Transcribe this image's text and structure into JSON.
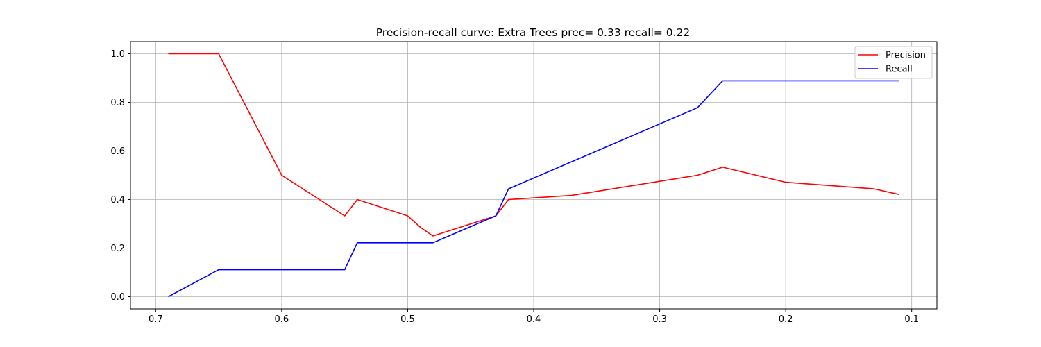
{
  "chart_data": {
    "type": "line",
    "title": "Precision-recall curve: Extra Trees prec= 0.33 recall= 0.22",
    "xlabel": "",
    "ylabel": "",
    "x_reversed": true,
    "xlim": [
      0.72,
      0.08
    ],
    "ylim": [
      -0.05,
      1.05
    ],
    "xticks": [
      0.7,
      0.6,
      0.5,
      0.4,
      0.3,
      0.2,
      0.1
    ],
    "xtick_labels": [
      "0.7",
      "0.6",
      "0.5",
      "0.4",
      "0.3",
      "0.2",
      "0.1"
    ],
    "yticks": [
      0.0,
      0.2,
      0.4,
      0.6,
      0.8,
      1.0
    ],
    "ytick_labels": [
      "0.0",
      "0.2",
      "0.4",
      "0.6",
      "0.8",
      "1.0"
    ],
    "grid": true,
    "legend_position": "top-right",
    "series": [
      {
        "name": "Precision",
        "color": "#ff0000",
        "x": [
          0.69,
          0.65,
          0.6,
          0.55,
          0.54,
          0.5,
          0.49,
          0.48,
          0.43,
          0.42,
          0.37,
          0.27,
          0.25,
          0.2,
          0.13,
          0.11
        ],
        "y": [
          1.0,
          1.0,
          0.5,
          0.333,
          0.4,
          0.333,
          0.286,
          0.25,
          0.333,
          0.4,
          0.417,
          0.5,
          0.533,
          0.471,
          0.444,
          0.421
        ]
      },
      {
        "name": "Recall",
        "color": "#0000ff",
        "x": [
          0.69,
          0.65,
          0.55,
          0.54,
          0.48,
          0.43,
          0.42,
          0.27,
          0.25,
          0.11
        ],
        "y": [
          0.0,
          0.111,
          0.111,
          0.222,
          0.222,
          0.333,
          0.444,
          0.778,
          0.889,
          0.889
        ]
      }
    ]
  }
}
